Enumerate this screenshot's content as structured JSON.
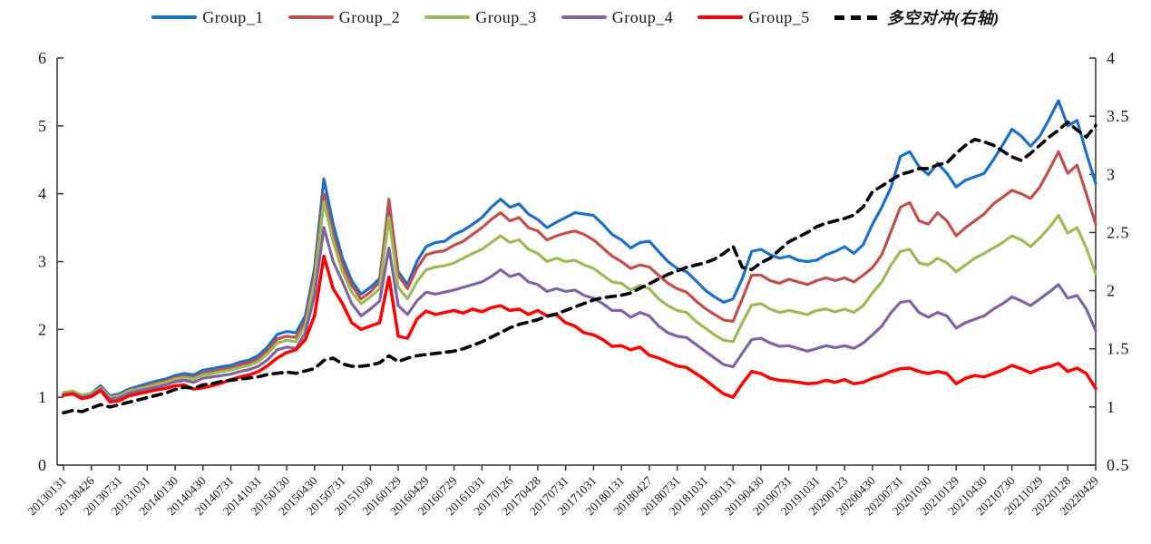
{
  "chart_data": {
    "type": "line",
    "title": "",
    "legend_position": "top",
    "grid": false,
    "x_axis": {
      "labels": [
        "20130131",
        "20130426",
        "20130731",
        "20131031",
        "20140130",
        "20140430",
        "20140731",
        "20141031",
        "20150130",
        "20150430",
        "20150731",
        "20151030",
        "20160129",
        "20160429",
        "20160729",
        "20161031",
        "20170126",
        "20170428",
        "20170731",
        "20171031",
        "20180131",
        "20180427",
        "20180731",
        "20181031",
        "20190131",
        "20190430",
        "20190731",
        "20191031",
        "20200123",
        "20200430",
        "20200731",
        "20201030",
        "20210129",
        "20210430",
        "20210730",
        "20211029",
        "20220128",
        "20220429"
      ],
      "label_every_n_points": 3,
      "note": "series values are monthly points; every 3rd point carries a tick label"
    },
    "y_axis_left": {
      "min": 0,
      "max": 6,
      "ticks": [
        "0",
        "1",
        "2",
        "3",
        "4",
        "5",
        "6"
      ]
    },
    "y_axis_right": {
      "min": 0.5,
      "max": 4,
      "ticks": [
        "0.5",
        "1",
        "1.5",
        "2",
        "2.5",
        "3",
        "3.5",
        "4"
      ]
    },
    "series": [
      {
        "name": "Group_1",
        "color": "#1D70C8",
        "axis": "left",
        "style": "solid",
        "values": [
          1.05,
          1.07,
          1.03,
          1.06,
          1.17,
          1.02,
          1.05,
          1.12,
          1.16,
          1.2,
          1.24,
          1.27,
          1.32,
          1.35,
          1.33,
          1.4,
          1.42,
          1.45,
          1.47,
          1.52,
          1.55,
          1.62,
          1.75,
          1.93,
          1.97,
          1.95,
          2.2,
          2.9,
          4.22,
          3.55,
          3.05,
          2.72,
          2.52,
          2.62,
          2.75,
          3.85,
          2.85,
          2.66,
          3.0,
          3.22,
          3.28,
          3.3,
          3.4,
          3.46,
          3.55,
          3.65,
          3.8,
          3.92,
          3.8,
          3.85,
          3.7,
          3.62,
          3.5,
          3.58,
          3.65,
          3.72,
          3.7,
          3.68,
          3.55,
          3.4,
          3.32,
          3.2,
          3.28,
          3.3,
          3.15,
          3.0,
          2.9,
          2.85,
          2.72,
          2.58,
          2.48,
          2.4,
          2.45,
          2.75,
          3.15,
          3.18,
          3.1,
          3.05,
          3.08,
          3.02,
          3.0,
          3.02,
          3.1,
          3.15,
          3.22,
          3.12,
          3.25,
          3.55,
          3.8,
          4.1,
          4.55,
          4.62,
          4.4,
          4.28,
          4.45,
          4.3,
          4.1,
          4.2,
          4.25,
          4.3,
          4.5,
          4.72,
          4.95,
          4.85,
          4.7,
          4.85,
          5.1,
          5.37,
          5.0,
          5.08,
          4.6,
          4.15
        ]
      },
      {
        "name": "Group_2",
        "color": "#C0504D",
        "axis": "left",
        "style": "solid",
        "values": [
          1.05,
          1.08,
          1.02,
          1.05,
          1.15,
          1.0,
          1.03,
          1.1,
          1.13,
          1.17,
          1.21,
          1.24,
          1.29,
          1.31,
          1.29,
          1.36,
          1.38,
          1.41,
          1.43,
          1.48,
          1.51,
          1.57,
          1.7,
          1.86,
          1.9,
          1.88,
          2.12,
          2.8,
          4.0,
          3.4,
          2.95,
          2.65,
          2.45,
          2.55,
          2.7,
          3.92,
          2.8,
          2.6,
          2.9,
          3.1,
          3.14,
          3.16,
          3.24,
          3.3,
          3.4,
          3.5,
          3.62,
          3.72,
          3.6,
          3.65,
          3.5,
          3.45,
          3.32,
          3.38,
          3.42,
          3.45,
          3.4,
          3.32,
          3.2,
          3.08,
          3.0,
          2.9,
          2.95,
          2.92,
          2.8,
          2.68,
          2.6,
          2.55,
          2.42,
          2.31,
          2.22,
          2.14,
          2.12,
          2.45,
          2.8,
          2.8,
          2.72,
          2.68,
          2.74,
          2.7,
          2.66,
          2.72,
          2.76,
          2.72,
          2.76,
          2.7,
          2.8,
          2.91,
          3.1,
          3.45,
          3.8,
          3.87,
          3.6,
          3.55,
          3.72,
          3.6,
          3.38,
          3.5,
          3.6,
          3.7,
          3.85,
          3.95,
          4.05,
          4.0,
          3.93,
          4.1,
          4.35,
          4.62,
          4.3,
          4.42,
          4.0,
          3.55
        ]
      },
      {
        "name": "Group_3",
        "color": "#9BBB59",
        "axis": "left",
        "style": "solid",
        "values": [
          1.07,
          1.09,
          1.03,
          1.06,
          1.14,
          1.0,
          1.02,
          1.09,
          1.12,
          1.15,
          1.19,
          1.22,
          1.27,
          1.29,
          1.27,
          1.33,
          1.35,
          1.38,
          1.4,
          1.44,
          1.47,
          1.53,
          1.65,
          1.8,
          1.84,
          1.82,
          2.05,
          2.7,
          3.88,
          3.3,
          2.85,
          2.55,
          2.38,
          2.48,
          2.6,
          3.65,
          2.62,
          2.45,
          2.7,
          2.88,
          2.92,
          2.94,
          2.98,
          3.05,
          3.12,
          3.18,
          3.28,
          3.38,
          3.28,
          3.32,
          3.18,
          3.12,
          3.0,
          3.05,
          3.0,
          3.02,
          2.95,
          2.9,
          2.8,
          2.7,
          2.68,
          2.58,
          2.65,
          2.6,
          2.45,
          2.35,
          2.28,
          2.25,
          2.12,
          2.02,
          1.92,
          1.84,
          1.82,
          2.1,
          2.36,
          2.38,
          2.3,
          2.25,
          2.28,
          2.25,
          2.22,
          2.28,
          2.3,
          2.26,
          2.3,
          2.25,
          2.35,
          2.54,
          2.7,
          2.95,
          3.15,
          3.18,
          2.98,
          2.95,
          3.05,
          2.98,
          2.85,
          2.95,
          3.05,
          3.12,
          3.2,
          3.28,
          3.38,
          3.32,
          3.22,
          3.35,
          3.5,
          3.68,
          3.42,
          3.5,
          3.2,
          2.82
        ]
      },
      {
        "name": "Group_4",
        "color": "#8064A2",
        "axis": "left",
        "style": "solid",
        "values": [
          1.04,
          1.06,
          1.0,
          1.03,
          1.12,
          0.97,
          0.99,
          1.06,
          1.09,
          1.12,
          1.15,
          1.18,
          1.23,
          1.25,
          1.22,
          1.28,
          1.3,
          1.32,
          1.34,
          1.38,
          1.41,
          1.46,
          1.56,
          1.7,
          1.74,
          1.72,
          1.95,
          2.5,
          3.5,
          3.0,
          2.7,
          2.38,
          2.2,
          2.3,
          2.42,
          3.2,
          2.35,
          2.22,
          2.42,
          2.55,
          2.52,
          2.55,
          2.58,
          2.62,
          2.66,
          2.7,
          2.78,
          2.88,
          2.78,
          2.82,
          2.7,
          2.66,
          2.56,
          2.6,
          2.56,
          2.58,
          2.5,
          2.46,
          2.38,
          2.28,
          2.28,
          2.18,
          2.25,
          2.2,
          2.05,
          1.95,
          1.9,
          1.88,
          1.78,
          1.68,
          1.58,
          1.48,
          1.45,
          1.65,
          1.85,
          1.87,
          1.8,
          1.75,
          1.76,
          1.72,
          1.68,
          1.72,
          1.76,
          1.73,
          1.76,
          1.72,
          1.8,
          1.92,
          2.05,
          2.25,
          2.4,
          2.42,
          2.25,
          2.18,
          2.25,
          2.2,
          2.02,
          2.1,
          2.15,
          2.2,
          2.3,
          2.38,
          2.48,
          2.42,
          2.35,
          2.45,
          2.55,
          2.66,
          2.46,
          2.5,
          2.3,
          1.98
        ]
      },
      {
        "name": "Group_5",
        "color": "#FF0000",
        "axis": "left",
        "style": "solid",
        "values": [
          1.03,
          1.05,
          0.98,
          1.01,
          1.1,
          0.93,
          0.95,
          1.02,
          1.05,
          1.08,
          1.11,
          1.13,
          1.17,
          1.18,
          1.12,
          1.14,
          1.17,
          1.21,
          1.26,
          1.3,
          1.33,
          1.38,
          1.47,
          1.58,
          1.66,
          1.7,
          1.85,
          2.2,
          3.08,
          2.6,
          2.38,
          2.1,
          2.0,
          2.05,
          2.1,
          2.77,
          1.9,
          1.87,
          2.15,
          2.27,
          2.22,
          2.25,
          2.28,
          2.24,
          2.3,
          2.26,
          2.32,
          2.35,
          2.28,
          2.3,
          2.22,
          2.28,
          2.2,
          2.22,
          2.1,
          2.05,
          1.95,
          1.92,
          1.85,
          1.75,
          1.76,
          1.7,
          1.74,
          1.62,
          1.58,
          1.52,
          1.46,
          1.44,
          1.35,
          1.26,
          1.15,
          1.05,
          1.0,
          1.2,
          1.38,
          1.35,
          1.28,
          1.25,
          1.24,
          1.22,
          1.2,
          1.21,
          1.25,
          1.22,
          1.26,
          1.2,
          1.22,
          1.28,
          1.32,
          1.38,
          1.42,
          1.43,
          1.38,
          1.35,
          1.38,
          1.35,
          1.2,
          1.28,
          1.32,
          1.3,
          1.35,
          1.4,
          1.47,
          1.42,
          1.36,
          1.42,
          1.45,
          1.5,
          1.38,
          1.43,
          1.35,
          1.13
        ]
      },
      {
        "name": "多空对冲(右轴)",
        "color": "#000000",
        "axis": "right",
        "style": "dashed",
        "values": [
          0.95,
          0.97,
          0.96,
          0.99,
          1.02,
          1.0,
          1.02,
          1.04,
          1.06,
          1.08,
          1.1,
          1.12,
          1.15,
          1.17,
          1.16,
          1.19,
          1.2,
          1.22,
          1.23,
          1.24,
          1.25,
          1.26,
          1.28,
          1.29,
          1.3,
          1.29,
          1.31,
          1.33,
          1.4,
          1.42,
          1.37,
          1.35,
          1.35,
          1.36,
          1.38,
          1.44,
          1.39,
          1.42,
          1.44,
          1.45,
          1.46,
          1.47,
          1.48,
          1.5,
          1.53,
          1.56,
          1.6,
          1.64,
          1.68,
          1.71,
          1.73,
          1.75,
          1.78,
          1.8,
          1.83,
          1.86,
          1.89,
          1.92,
          1.94,
          1.95,
          1.96,
          1.98,
          2.02,
          2.06,
          2.1,
          2.14,
          2.17,
          2.2,
          2.22,
          2.24,
          2.27,
          2.32,
          2.38,
          2.2,
          2.18,
          2.24,
          2.28,
          2.35,
          2.42,
          2.46,
          2.5,
          2.55,
          2.58,
          2.6,
          2.62,
          2.65,
          2.72,
          2.85,
          2.9,
          2.95,
          3.0,
          3.02,
          3.05,
          3.05,
          3.08,
          3.1,
          3.18,
          3.25,
          3.3,
          3.28,
          3.25,
          3.2,
          3.15,
          3.12,
          3.18,
          3.25,
          3.32,
          3.38,
          3.45,
          3.38,
          3.32,
          3.42
        ]
      }
    ]
  }
}
